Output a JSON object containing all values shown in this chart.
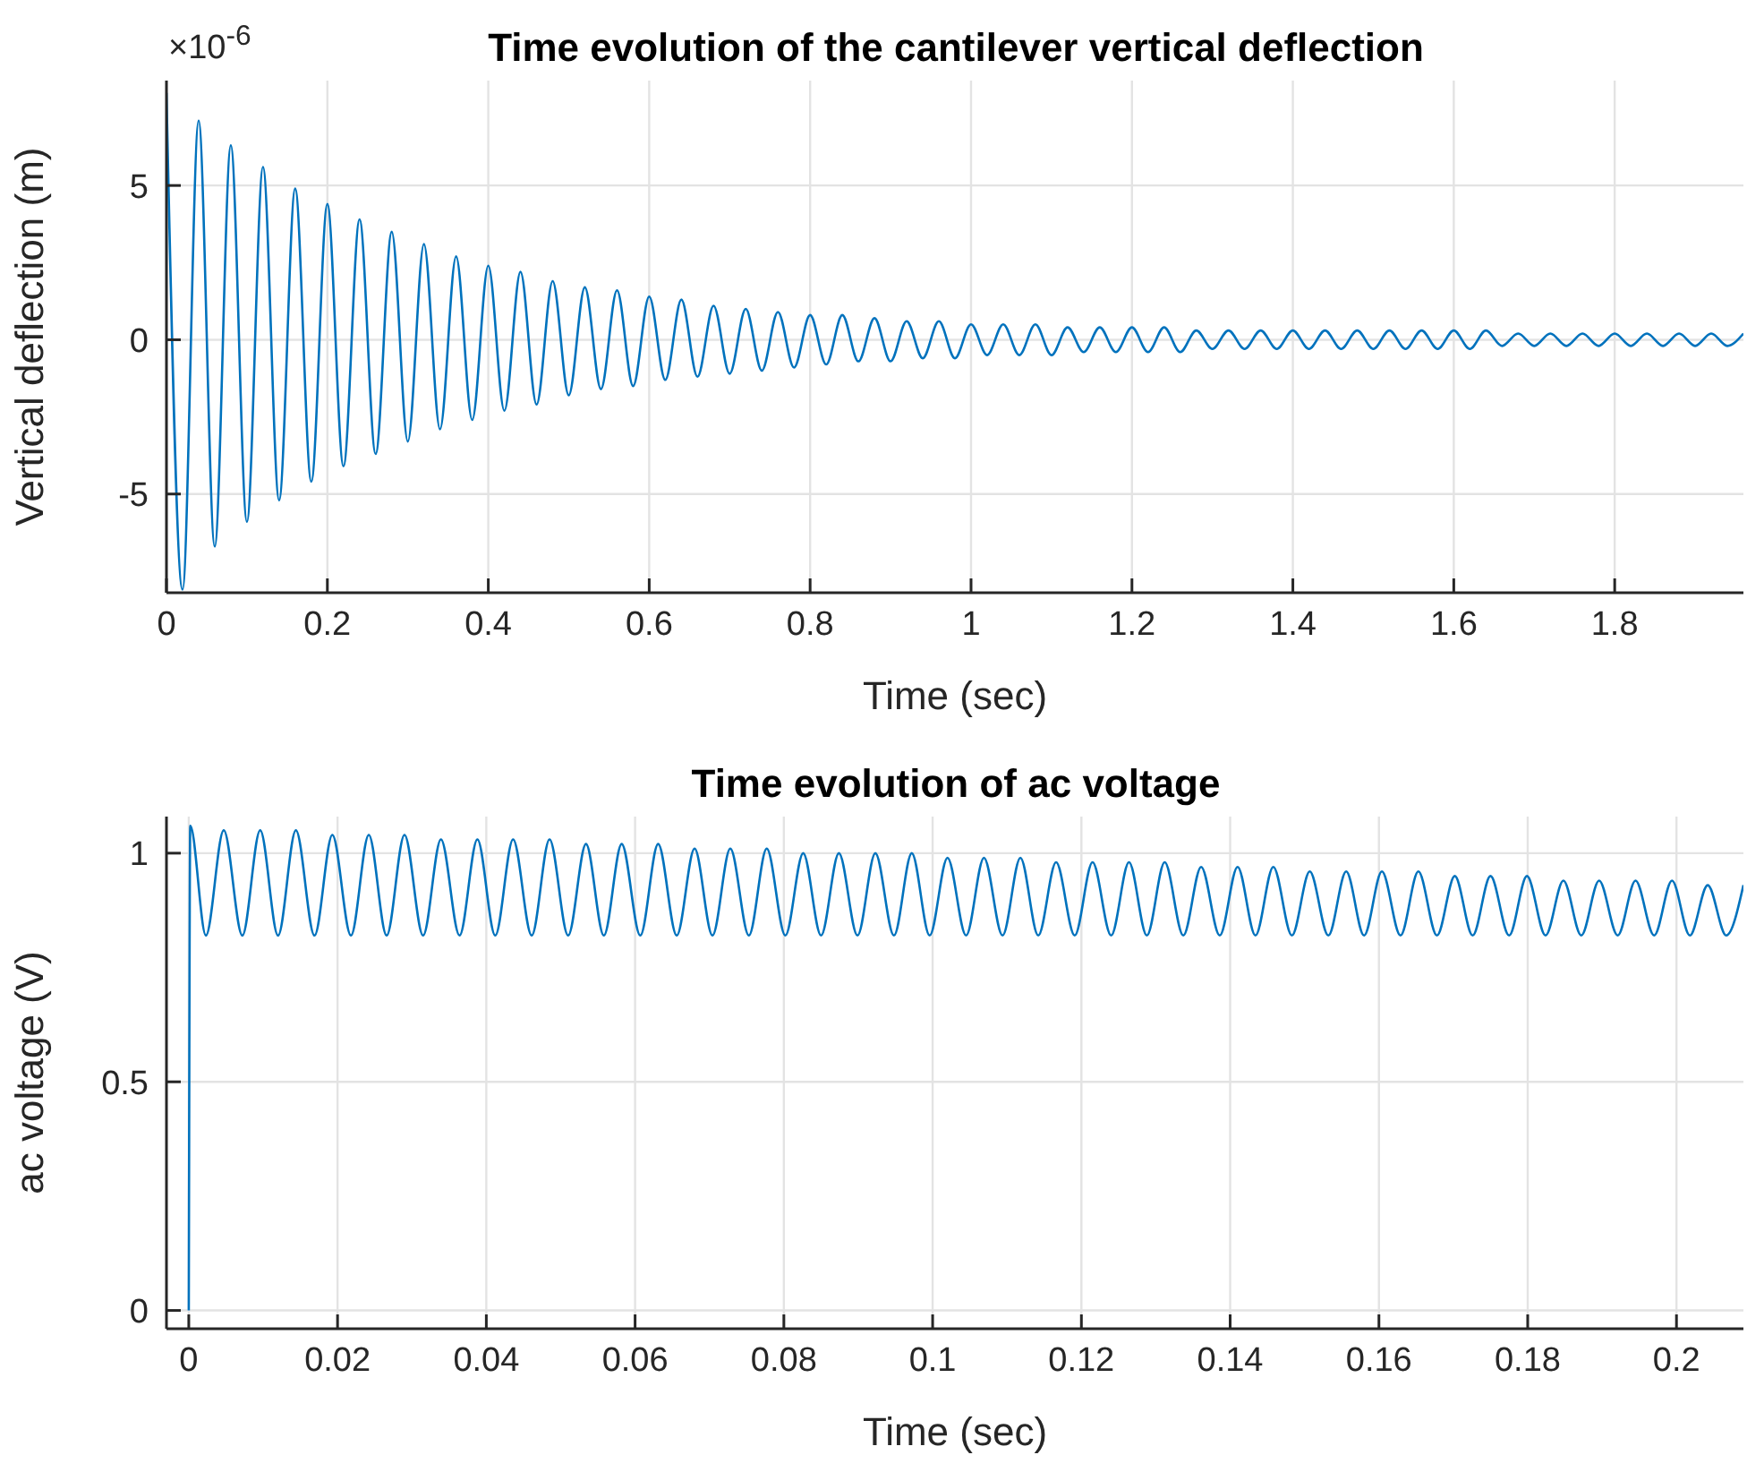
{
  "chart_data": [
    {
      "type": "line",
      "title": "Time evolution of the cantilever vertical deflection",
      "xlabel": "Time (sec)",
      "ylabel": "Vertical deflection (m)",
      "annotations": [
        "×10$^{-6}$"
      ],
      "grid": true,
      "x": [
        0,
        0.02,
        0.04,
        0.06,
        0.08,
        0.1,
        0.12,
        0.14,
        0.16,
        0.18,
        0.2,
        0.22,
        0.24,
        0.26,
        0.28,
        0.3,
        0.32,
        0.34,
        0.36,
        0.38,
        0.4,
        0.42,
        0.44,
        0.46,
        0.48,
        0.5,
        0.52,
        0.54,
        0.56,
        0.58,
        0.6,
        0.62,
        0.64,
        0.66,
        0.68,
        0.7,
        0.72,
        0.74,
        0.76,
        0.78,
        0.8,
        0.82,
        0.84,
        0.86,
        0.88,
        0.9,
        0.92,
        0.94,
        0.96,
        0.98,
        1,
        1.02,
        1.04,
        1.06,
        1.08,
        1.1,
        1.12,
        1.14,
        1.16,
        1.18,
        1.2,
        1.22,
        1.24,
        1.26,
        1.28,
        1.3,
        1.32,
        1.34,
        1.36,
        1.38,
        1.4,
        1.42,
        1.44,
        1.46,
        1.48,
        1.5,
        1.52,
        1.54,
        1.56,
        1.58,
        1.6,
        1.62,
        1.64,
        1.66,
        1.68,
        1.7,
        1.72,
        1.74,
        1.76,
        1.78,
        1.8,
        1.82,
        1.84,
        1.86,
        1.88,
        1.9,
        1.92,
        1.94,
        1.96
      ],
      "series": [
        {
          "color": "#0072bd",
          "values": [
            8.0,
            -8.1,
            7.1,
            -6.7,
            6.3,
            -5.9,
            5.6,
            -5.2,
            4.9,
            -4.6,
            4.4,
            -4.1,
            3.9,
            -3.7,
            3.5,
            -3.3,
            3.1,
            -2.9,
            2.7,
            -2.6,
            2.4,
            -2.3,
            2.2,
            -2.1,
            1.9,
            -1.8,
            1.7,
            -1.6,
            1.6,
            -1.5,
            1.4,
            -1.3,
            1.3,
            -1.2,
            1.1,
            -1.1,
            1.0,
            -1.0,
            0.9,
            -0.9,
            0.8,
            -0.8,
            0.8,
            -0.7,
            0.7,
            -0.7,
            0.6,
            -0.6,
            0.6,
            -0.6,
            0.5,
            -0.5,
            0.5,
            -0.5,
            0.5,
            -0.5,
            0.4,
            -0.4,
            0.4,
            -0.4,
            0.4,
            -0.4,
            0.4,
            -0.4,
            0.3,
            -0.3,
            0.3,
            -0.3,
            0.3,
            -0.3,
            0.3,
            -0.3,
            0.3,
            -0.3,
            0.3,
            -0.3,
            0.3,
            -0.3,
            0.3,
            -0.3,
            0.3,
            -0.3,
            0.3,
            -0.2,
            0.2,
            -0.2,
            0.2,
            -0.2,
            0.2,
            -0.2,
            0.2,
            -0.2,
            0.2,
            -0.2,
            0.2,
            -0.2,
            0.2,
            -0.2,
            0.2
          ]
        }
      ],
      "xlim": [
        0,
        1.96
      ],
      "xticks": [
        0,
        0.2,
        0.4,
        0.6,
        0.8,
        1,
        1.2,
        1.4,
        1.6,
        1.8
      ],
      "ylim": [
        -8.2,
        8.4
      ],
      "yticks": [
        -5,
        0,
        5
      ]
    },
    {
      "type": "line",
      "title": "Time evolution of ac voltage",
      "xlabel": "Time (sec)",
      "ylabel": "ac voltage (V)",
      "grid": true,
      "x": [
        0,
        0.0002,
        0.0023,
        0.0047,
        0.0072,
        0.0096,
        0.012,
        0.0144,
        0.0169,
        0.0193,
        0.0218,
        0.0242,
        0.0266,
        0.029,
        0.0315,
        0.0339,
        0.0364,
        0.0388,
        0.0412,
        0.0436,
        0.0461,
        0.0485,
        0.051,
        0.0534,
        0.0558,
        0.0582,
        0.0607,
        0.0631,
        0.0656,
        0.068,
        0.0704,
        0.0728,
        0.0753,
        0.0777,
        0.0802,
        0.0826,
        0.085,
        0.0874,
        0.0899,
        0.0923,
        0.0948,
        0.0972,
        0.0996,
        0.102,
        0.1045,
        0.1069,
        0.1094,
        0.1118,
        0.1142,
        0.1166,
        0.1191,
        0.1215,
        0.124,
        0.1264,
        0.1288,
        0.1312,
        0.1337,
        0.1361,
        0.1386,
        0.141,
        0.1434,
        0.1458,
        0.1483,
        0.1507,
        0.1532,
        0.1556,
        0.158,
        0.1604,
        0.1629,
        0.1653,
        0.1678,
        0.1702,
        0.1726,
        0.175,
        0.1775,
        0.1799,
        0.1824,
        0.1848,
        0.1872,
        0.1896,
        0.1921,
        0.1945,
        0.197,
        0.1994,
        0.2018,
        0.2042,
        0.2067,
        0.209
      ],
      "series": [
        {
          "color": "#0072bd",
          "values": [
            0,
            1.06,
            0.82,
            1.05,
            0.82,
            1.05,
            0.82,
            1.05,
            0.82,
            1.04,
            0.82,
            1.04,
            0.82,
            1.04,
            0.82,
            1.03,
            0.82,
            1.03,
            0.82,
            1.03,
            0.82,
            1.03,
            0.82,
            1.02,
            0.82,
            1.02,
            0.82,
            1.02,
            0.82,
            1.01,
            0.82,
            1.01,
            0.82,
            1.01,
            0.82,
            1.0,
            0.82,
            1.0,
            0.82,
            1.0,
            0.82,
            1.0,
            0.82,
            0.99,
            0.82,
            0.99,
            0.82,
            0.99,
            0.82,
            0.98,
            0.82,
            0.98,
            0.82,
            0.98,
            0.82,
            0.98,
            0.82,
            0.97,
            0.82,
            0.97,
            0.82,
            0.97,
            0.82,
            0.96,
            0.82,
            0.96,
            0.82,
            0.96,
            0.82,
            0.96,
            0.82,
            0.95,
            0.82,
            0.95,
            0.82,
            0.95,
            0.82,
            0.94,
            0.82,
            0.94,
            0.82,
            0.94,
            0.82,
            0.94,
            0.82,
            0.93,
            0.82,
            0.93
          ]
        }
      ],
      "xlim": [
        -0.003,
        0.209
      ],
      "xticks": [
        0,
        0.02,
        0.04,
        0.06,
        0.08,
        0.1,
        0.12,
        0.14,
        0.16,
        0.18,
        0.2
      ],
      "ylim": [
        -0.04,
        1.08
      ],
      "yticks": [
        0,
        0.5,
        1
      ]
    }
  ]
}
